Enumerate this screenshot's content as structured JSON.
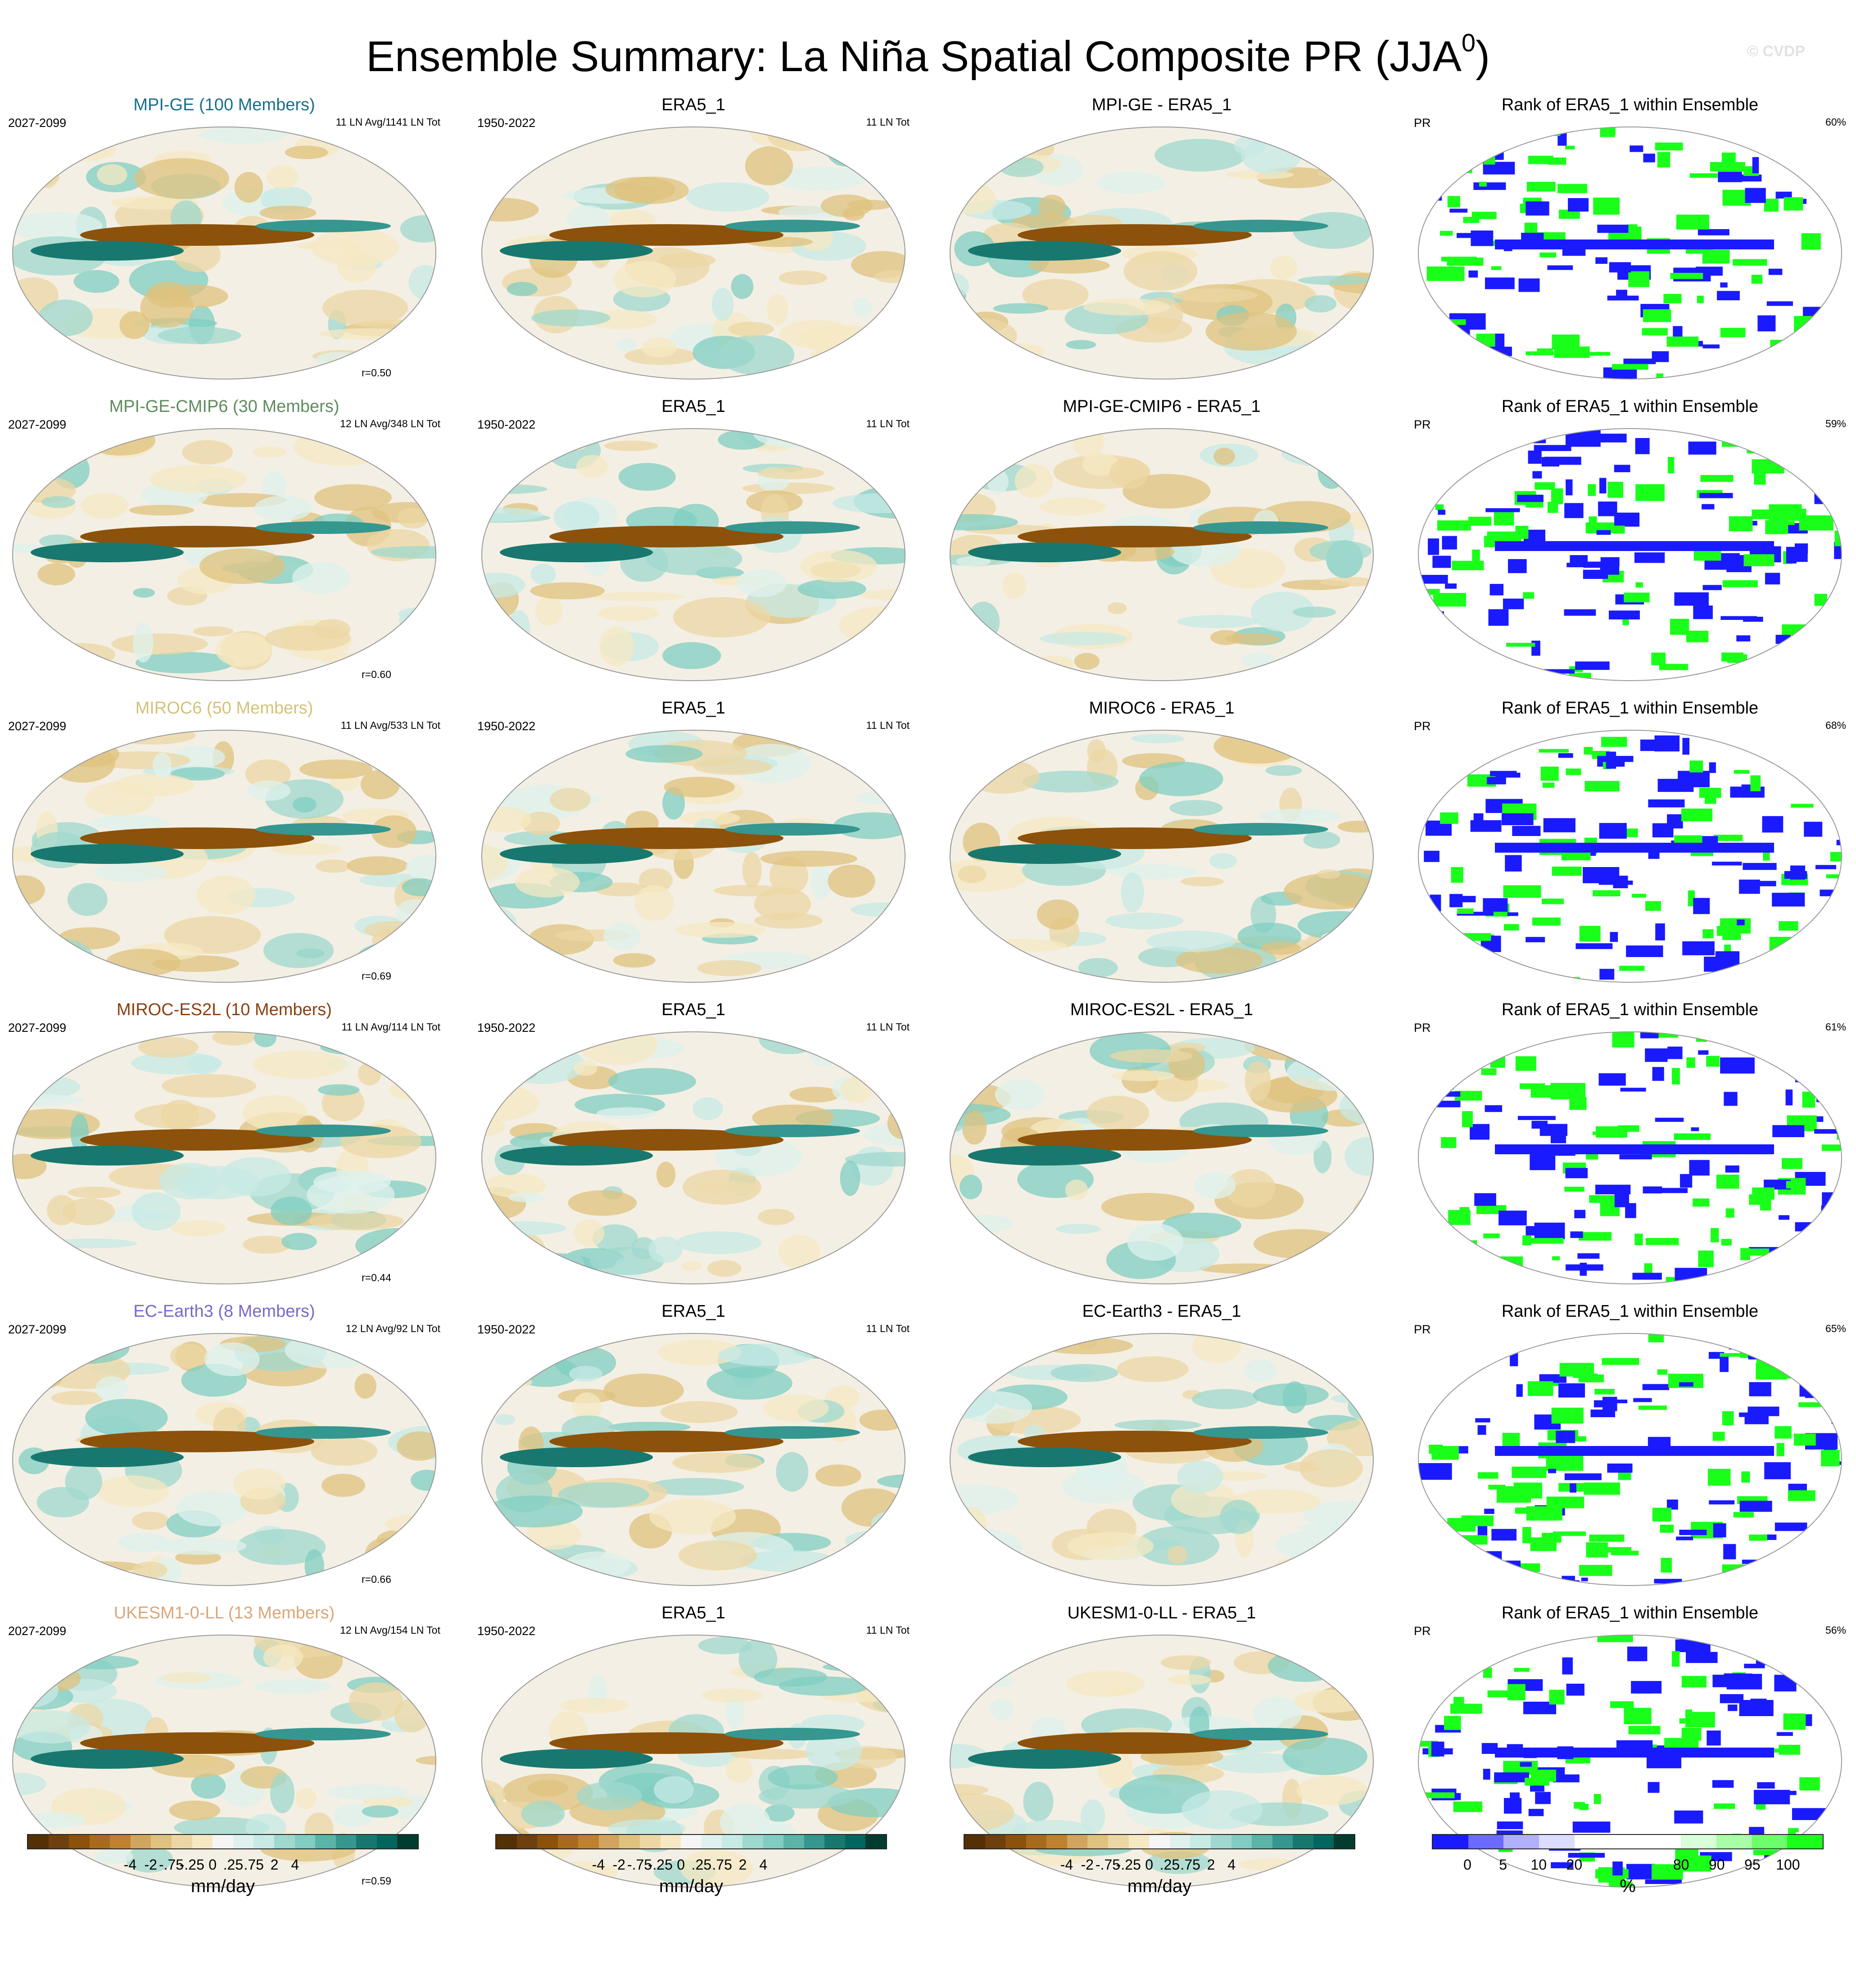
{
  "figure": {
    "title": "Ensemble Summary: La Niña Spatial Composite PR (JJA",
    "title_superscript": "0",
    "title_close": ")",
    "credit": "© CVDP"
  },
  "rows": [
    {
      "model": "MPI-GE (100 Members)",
      "model_color": "#1a6f8c",
      "model_period": "2027-2099",
      "model_counts": "11 LN Avg/1141 LN Tot",
      "r": "r=0.50",
      "obs_title": "ERA5_1",
      "obs_period": "1950-2022",
      "obs_counts": "11 LN Tot",
      "diff_title": "MPI-GE - ERA5_1",
      "rank_title": "Rank of ERA5_1 within Ensemble",
      "rank_var": "PR",
      "rank_pct": "60%"
    },
    {
      "model": "MPI-GE-CMIP6 (30 Members)",
      "model_color": "#5e8c5e",
      "model_period": "2027-2099",
      "model_counts": "12 LN Avg/348 LN Tot",
      "r": "r=0.60",
      "obs_title": "ERA5_1",
      "obs_period": "1950-2022",
      "obs_counts": "11 LN Tot",
      "diff_title": "MPI-GE-CMIP6 - ERA5_1",
      "rank_title": "Rank of ERA5_1 within Ensemble",
      "rank_var": "PR",
      "rank_pct": "59%"
    },
    {
      "model": "MIROC6 (50 Members)",
      "model_color": "#d4c27a",
      "model_period": "2027-2099",
      "model_counts": "11 LN Avg/533 LN Tot",
      "r": "r=0.69",
      "obs_title": "ERA5_1",
      "obs_period": "1950-2022",
      "obs_counts": "11 LN Tot",
      "diff_title": "MIROC6 - ERA5_1",
      "rank_title": "Rank of ERA5_1 within Ensemble",
      "rank_var": "PR",
      "rank_pct": "68%"
    },
    {
      "model": "MIROC-ES2L (10 Members)",
      "model_color": "#8b3f10",
      "model_period": "2027-2099",
      "model_counts": "11 LN Avg/114 LN Tot",
      "r": "r=0.44",
      "obs_title": "ERA5_1",
      "obs_period": "1950-2022",
      "obs_counts": "11 LN Tot",
      "diff_title": "MIROC-ES2L - ERA5_1",
      "rank_title": "Rank of ERA5_1 within Ensemble",
      "rank_var": "PR",
      "rank_pct": "61%"
    },
    {
      "model": "EC-Earth3 (8 Members)",
      "model_color": "#7b68c8",
      "model_period": "2027-2099",
      "model_counts": "12 LN Avg/92 LN Tot",
      "r": "r=0.66",
      "obs_title": "ERA5_1",
      "obs_period": "1950-2022",
      "obs_counts": "11 LN Tot",
      "diff_title": "EC-Earth3 - ERA5_1",
      "rank_title": "Rank of ERA5_1 within Ensemble",
      "rank_var": "PR",
      "rank_pct": "65%"
    },
    {
      "model": "UKESM1-0-LL (13 Members)",
      "model_color": "#d9a77a",
      "model_period": "2027-2099",
      "model_counts": "12 LN Avg/154 LN Tot",
      "r": "r=0.59",
      "obs_title": "ERA5_1",
      "obs_period": "1950-2022",
      "obs_counts": "11 LN Tot",
      "diff_title": "UKESM1-0-LL - ERA5_1",
      "rank_title": "Rank of ERA5_1 within Ensemble",
      "rank_var": "PR",
      "rank_pct": "56%"
    }
  ],
  "colorbars": {
    "pr": {
      "colors": [
        "#543005",
        "#6e400d",
        "#8c510a",
        "#a86b1e",
        "#bf812d",
        "#d2a55f",
        "#dfc27d",
        "#ecd7a4",
        "#f6e8c3",
        "#f5f5f5",
        "#dff1ee",
        "#c7eae5",
        "#9fd8ce",
        "#80cdc1",
        "#5ab4a8",
        "#35978f",
        "#18786f",
        "#01665e",
        "#003c30"
      ],
      "ticks": [
        "-4",
        "-2",
        "-.75",
        "-.25",
        "0",
        ".25",
        ".75",
        "2",
        "4"
      ],
      "unit": "mm/day"
    },
    "rank": {
      "colors": [
        "#1a1aff",
        "#6b6bff",
        "#b0b0ff",
        "#dcdcff",
        "#ffffff",
        "#ffffff",
        "#ffffff",
        "#d9ffd9",
        "#a8ffa8",
        "#6bff6b",
        "#1aff1a"
      ],
      "ticks": [
        "0",
        "5",
        "10",
        "20",
        "80",
        "90",
        "95",
        "100"
      ],
      "unit": "%"
    }
  }
}
